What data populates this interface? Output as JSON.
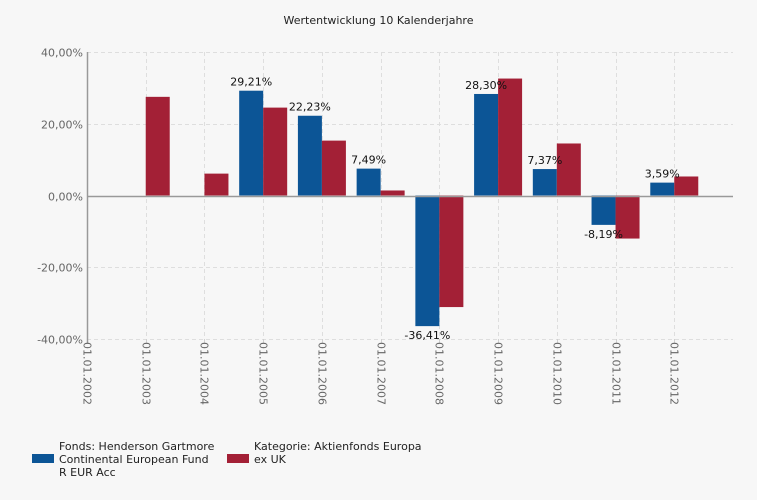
{
  "chart_data": {
    "type": "bar",
    "title": "Wertentwicklung 10 Kalenderjahre",
    "xlabel": "",
    "ylabel": "",
    "ylim": [
      -40,
      40
    ],
    "yticks": [
      40,
      20,
      0,
      -20,
      -40
    ],
    "ytick_labels": [
      "40,00%",
      "20,00%",
      "0,00%",
      "-20,00%",
      "-40,00%"
    ],
    "grid": true,
    "legend_position": "bottom-left",
    "categories": [
      "01.01.2002",
      "01.01.2003",
      "01.01.2004",
      "01.01.2005",
      "01.01.2006",
      "01.01.2007",
      "01.01.2008",
      "01.01.2009",
      "01.01.2010",
      "01.01.2011",
      "01.01.2012"
    ],
    "series": [
      {
        "name": "Fonds: Henderson Gartmore Continental European Fund R EUR Acc",
        "color": "#0c5596",
        "values": [
          null,
          null,
          null,
          29.21,
          22.23,
          7.49,
          -36.41,
          28.3,
          7.37,
          -8.19,
          3.59
        ],
        "data_labels": [
          null,
          null,
          null,
          "29,21%",
          "22,23%",
          "7,49%",
          "-36,41%",
          "28,30%",
          "7,37%",
          "-8,19%",
          "3,59%"
        ]
      },
      {
        "name": "Kategorie: Aktienfonds Europa ex UK",
        "color": "#a32036",
        "values": [
          null,
          27.5,
          6.1,
          24.5,
          15.3,
          1.4,
          -31.1,
          32.6,
          14.5,
          -12.0,
          5.3
        ],
        "data_labels": [
          null,
          null,
          null,
          null,
          null,
          null,
          null,
          null,
          null,
          null,
          null
        ]
      }
    ]
  },
  "legend": {
    "fund_label": "Fonds: Henderson Gartmore\nContinental European Fund\nR EUR Acc",
    "category_label": "Kategorie: Aktienfonds Europa\nex UK"
  }
}
